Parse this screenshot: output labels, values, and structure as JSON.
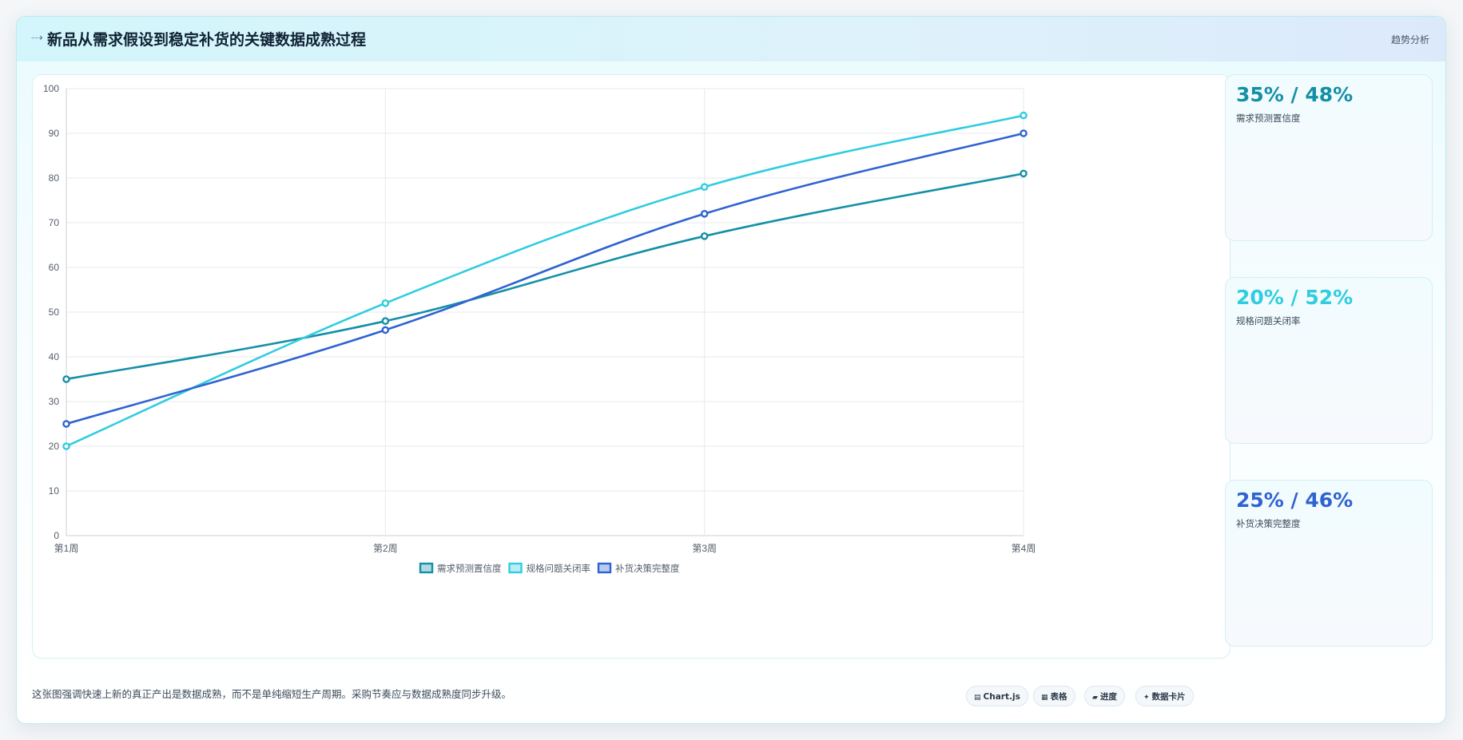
{
  "header": {
    "title": "新品从需求假设到稳定补货的关键数据成熟过程",
    "right_label": "趋势分析"
  },
  "chart_data": {
    "type": "line",
    "categories": [
      "第1周",
      "第2周",
      "第3周",
      "第4周"
    ],
    "ylim": [
      0,
      100
    ],
    "yticks": [
      0,
      10,
      20,
      30,
      40,
      50,
      60,
      70,
      80,
      90,
      100
    ],
    "grid": true,
    "legend_position": "bottom",
    "series": [
      {
        "name": "需求预测置信度",
        "values": [
          35,
          48,
          67,
          81
        ],
        "color": "#1490a6"
      },
      {
        "name": "规格问题关闭率",
        "values": [
          20,
          52,
          78,
          94
        ],
        "color": "#30cde0"
      },
      {
        "name": "补货决策完整度",
        "values": [
          25,
          46,
          72,
          90
        ],
        "color": "#2f63d1"
      }
    ]
  },
  "stats": [
    {
      "value": "35% / 48%",
      "label": "需求预测置信度",
      "color": "#1490a6"
    },
    {
      "value": "20% / 52%",
      "label": "规格问题关闭率",
      "color": "#30cde0"
    },
    {
      "value": "25% / 46%",
      "label": "补货决策完整度",
      "color": "#2f63d1"
    }
  ],
  "footer": {
    "note": "这张图强调快速上新的真正产出是数据成熟，而不是单纯缩短生产周期。采购节奏应与数据成熟度同步升级。",
    "pills": [
      {
        "icon": "▤",
        "label": "Chart.js"
      },
      {
        "icon": "▦",
        "label": "表格"
      },
      {
        "icon": "▰",
        "label": "进度"
      },
      {
        "icon": "✦",
        "label": "数据卡片"
      }
    ]
  }
}
